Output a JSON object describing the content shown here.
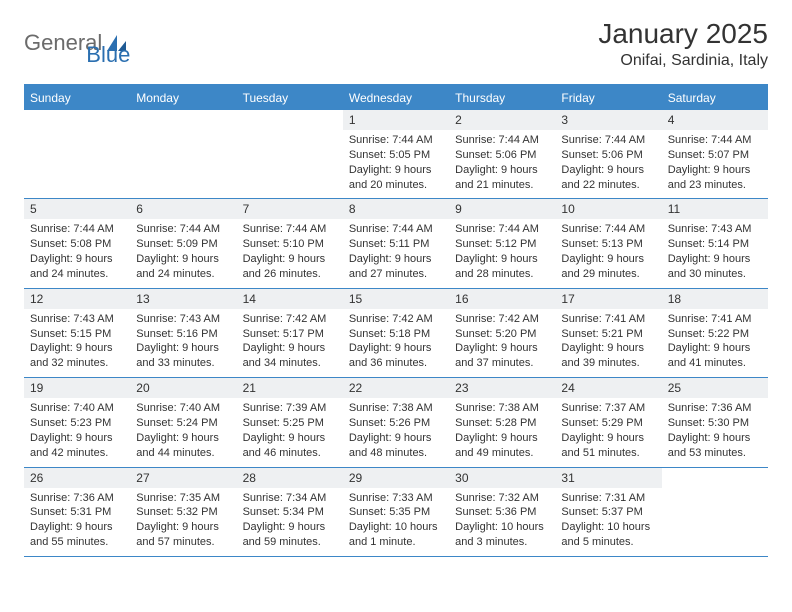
{
  "brand": {
    "word1": "General",
    "word2": "Blue"
  },
  "title": "January 2025",
  "location": "Onifai, Sardinia, Italy",
  "colors": {
    "header_bg": "#3d87c7",
    "header_text": "#ffffff",
    "daynum_bg": "#eef0f2",
    "border": "#3d87c7",
    "body_text": "#333333",
    "logo_gray": "#6b6b6b",
    "logo_blue": "#2b6fb0",
    "page_bg": "#ffffff"
  },
  "typography": {
    "title_fontsize": 28,
    "location_fontsize": 16,
    "dow_fontsize": 12,
    "daynum_fontsize": 12,
    "cell_fontsize": 11,
    "logo_fontsize": 22
  },
  "layout": {
    "columns": 7,
    "rows": 5,
    "first_weekday_column": 3
  },
  "days_of_week": [
    "Sunday",
    "Monday",
    "Tuesday",
    "Wednesday",
    "Thursday",
    "Friday",
    "Saturday"
  ],
  "days": [
    {
      "n": 1,
      "sunrise": "7:44 AM",
      "sunset": "5:05 PM",
      "daylight": "9 hours and 20 minutes."
    },
    {
      "n": 2,
      "sunrise": "7:44 AM",
      "sunset": "5:06 PM",
      "daylight": "9 hours and 21 minutes."
    },
    {
      "n": 3,
      "sunrise": "7:44 AM",
      "sunset": "5:06 PM",
      "daylight": "9 hours and 22 minutes."
    },
    {
      "n": 4,
      "sunrise": "7:44 AM",
      "sunset": "5:07 PM",
      "daylight": "9 hours and 23 minutes."
    },
    {
      "n": 5,
      "sunrise": "7:44 AM",
      "sunset": "5:08 PM",
      "daylight": "9 hours and 24 minutes."
    },
    {
      "n": 6,
      "sunrise": "7:44 AM",
      "sunset": "5:09 PM",
      "daylight": "9 hours and 24 minutes."
    },
    {
      "n": 7,
      "sunrise": "7:44 AM",
      "sunset": "5:10 PM",
      "daylight": "9 hours and 26 minutes."
    },
    {
      "n": 8,
      "sunrise": "7:44 AM",
      "sunset": "5:11 PM",
      "daylight": "9 hours and 27 minutes."
    },
    {
      "n": 9,
      "sunrise": "7:44 AM",
      "sunset": "5:12 PM",
      "daylight": "9 hours and 28 minutes."
    },
    {
      "n": 10,
      "sunrise": "7:44 AM",
      "sunset": "5:13 PM",
      "daylight": "9 hours and 29 minutes."
    },
    {
      "n": 11,
      "sunrise": "7:43 AM",
      "sunset": "5:14 PM",
      "daylight": "9 hours and 30 minutes."
    },
    {
      "n": 12,
      "sunrise": "7:43 AM",
      "sunset": "5:15 PM",
      "daylight": "9 hours and 32 minutes."
    },
    {
      "n": 13,
      "sunrise": "7:43 AM",
      "sunset": "5:16 PM",
      "daylight": "9 hours and 33 minutes."
    },
    {
      "n": 14,
      "sunrise": "7:42 AM",
      "sunset": "5:17 PM",
      "daylight": "9 hours and 34 minutes."
    },
    {
      "n": 15,
      "sunrise": "7:42 AM",
      "sunset": "5:18 PM",
      "daylight": "9 hours and 36 minutes."
    },
    {
      "n": 16,
      "sunrise": "7:42 AM",
      "sunset": "5:20 PM",
      "daylight": "9 hours and 37 minutes."
    },
    {
      "n": 17,
      "sunrise": "7:41 AM",
      "sunset": "5:21 PM",
      "daylight": "9 hours and 39 minutes."
    },
    {
      "n": 18,
      "sunrise": "7:41 AM",
      "sunset": "5:22 PM",
      "daylight": "9 hours and 41 minutes."
    },
    {
      "n": 19,
      "sunrise": "7:40 AM",
      "sunset": "5:23 PM",
      "daylight": "9 hours and 42 minutes."
    },
    {
      "n": 20,
      "sunrise": "7:40 AM",
      "sunset": "5:24 PM",
      "daylight": "9 hours and 44 minutes."
    },
    {
      "n": 21,
      "sunrise": "7:39 AM",
      "sunset": "5:25 PM",
      "daylight": "9 hours and 46 minutes."
    },
    {
      "n": 22,
      "sunrise": "7:38 AM",
      "sunset": "5:26 PM",
      "daylight": "9 hours and 48 minutes."
    },
    {
      "n": 23,
      "sunrise": "7:38 AM",
      "sunset": "5:28 PM",
      "daylight": "9 hours and 49 minutes."
    },
    {
      "n": 24,
      "sunrise": "7:37 AM",
      "sunset": "5:29 PM",
      "daylight": "9 hours and 51 minutes."
    },
    {
      "n": 25,
      "sunrise": "7:36 AM",
      "sunset": "5:30 PM",
      "daylight": "9 hours and 53 minutes."
    },
    {
      "n": 26,
      "sunrise": "7:36 AM",
      "sunset": "5:31 PM",
      "daylight": "9 hours and 55 minutes."
    },
    {
      "n": 27,
      "sunrise": "7:35 AM",
      "sunset": "5:32 PM",
      "daylight": "9 hours and 57 minutes."
    },
    {
      "n": 28,
      "sunrise": "7:34 AM",
      "sunset": "5:34 PM",
      "daylight": "9 hours and 59 minutes."
    },
    {
      "n": 29,
      "sunrise": "7:33 AM",
      "sunset": "5:35 PM",
      "daylight": "10 hours and 1 minute."
    },
    {
      "n": 30,
      "sunrise": "7:32 AM",
      "sunset": "5:36 PM",
      "daylight": "10 hours and 3 minutes."
    },
    {
      "n": 31,
      "sunrise": "7:31 AM",
      "sunset": "5:37 PM",
      "daylight": "10 hours and 5 minutes."
    }
  ],
  "labels": {
    "sunrise": "Sunrise:",
    "sunset": "Sunset:",
    "daylight": "Daylight:"
  }
}
